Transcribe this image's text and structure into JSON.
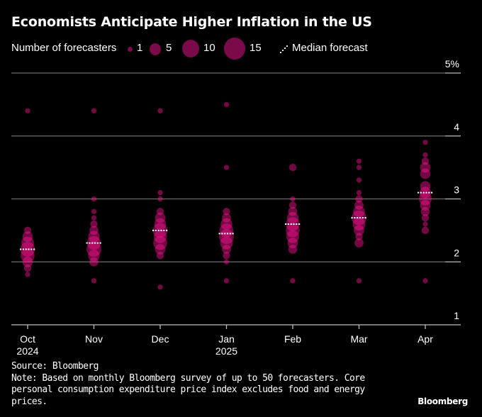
{
  "title": "Economists Anticipate Higher Inflation in the US",
  "legend": {
    "size_label": "Number of forecasters",
    "sizes": [
      {
        "count": 1,
        "label": "1"
      },
      {
        "count": 5,
        "label": "5"
      },
      {
        "count": 10,
        "label": "10"
      },
      {
        "count": 15,
        "label": "15"
      }
    ],
    "median_label": "Median forecast"
  },
  "colors": {
    "legend_circle": "#7a0a4a",
    "dot": "#ff1493",
    "median": "#ffffff",
    "grid": "#6e6e6e",
    "background": "#000000"
  },
  "footer": {
    "source": "Source: Bloomberg",
    "note_lines": [
      "Note: Based on monthly Bloomberg survey of up to 50 forecasters. Core",
      "personal consumption expenditure price index excludes food and energy",
      "prices."
    ],
    "brand": "Bloomberg"
  },
  "chart_data": {
    "type": "scatter",
    "title": "Economists Anticipate Higher Inflation in the US",
    "xlabel": "",
    "ylabel": "",
    "ylim": [
      1,
      5
    ],
    "y_ticks": [
      {
        "value": 5,
        "label": "5%"
      },
      {
        "value": 4,
        "label": "4"
      },
      {
        "value": 3,
        "label": "3"
      },
      {
        "value": 2,
        "label": "2"
      },
      {
        "value": 1,
        "label": "1"
      }
    ],
    "grid": true,
    "legend_position": "top",
    "categories": [
      {
        "label": "Oct",
        "sub": "2024"
      },
      {
        "label": "Nov",
        "sub": ""
      },
      {
        "label": "Dec",
        "sub": ""
      },
      {
        "label": "Jan",
        "sub": "2025"
      },
      {
        "label": "Feb",
        "sub": ""
      },
      {
        "label": "Mar",
        "sub": ""
      },
      {
        "label": "Apr",
        "sub": ""
      }
    ],
    "medians": [
      2.2,
      2.3,
      2.5,
      2.45,
      2.6,
      2.7,
      3.1
    ],
    "series": [
      {
        "name": "Oct",
        "points": [
          {
            "value": 4.4,
            "count": 1
          },
          {
            "value": 2.5,
            "count": 2
          },
          {
            "value": 2.4,
            "count": 4
          },
          {
            "value": 2.3,
            "count": 6
          },
          {
            "value": 2.2,
            "count": 8
          },
          {
            "value": 2.1,
            "count": 7
          },
          {
            "value": 2.0,
            "count": 4
          },
          {
            "value": 1.9,
            "count": 2
          },
          {
            "value": 1.8,
            "count": 1
          }
        ]
      },
      {
        "name": "Nov",
        "points": [
          {
            "value": 4.4,
            "count": 1
          },
          {
            "value": 3.0,
            "count": 1
          },
          {
            "value": 2.8,
            "count": 1
          },
          {
            "value": 2.7,
            "count": 1
          },
          {
            "value": 2.6,
            "count": 2
          },
          {
            "value": 2.5,
            "count": 3
          },
          {
            "value": 2.4,
            "count": 5
          },
          {
            "value": 2.3,
            "count": 7
          },
          {
            "value": 2.2,
            "count": 8
          },
          {
            "value": 2.1,
            "count": 5
          },
          {
            "value": 2.0,
            "count": 3
          },
          {
            "value": 1.7,
            "count": 1
          }
        ]
      },
      {
        "name": "Dec",
        "points": [
          {
            "value": 4.4,
            "count": 1
          },
          {
            "value": 3.1,
            "count": 1
          },
          {
            "value": 3.0,
            "count": 1
          },
          {
            "value": 2.8,
            "count": 2
          },
          {
            "value": 2.7,
            "count": 4
          },
          {
            "value": 2.6,
            "count": 5
          },
          {
            "value": 2.5,
            "count": 8
          },
          {
            "value": 2.4,
            "count": 6
          },
          {
            "value": 2.3,
            "count": 7
          },
          {
            "value": 2.2,
            "count": 4
          },
          {
            "value": 2.1,
            "count": 2
          },
          {
            "value": 1.6,
            "count": 1
          }
        ]
      },
      {
        "name": "Jan",
        "points": [
          {
            "value": 4.5,
            "count": 1
          },
          {
            "value": 3.5,
            "count": 1
          },
          {
            "value": 2.8,
            "count": 2
          },
          {
            "value": 2.7,
            "count": 3
          },
          {
            "value": 2.6,
            "count": 5
          },
          {
            "value": 2.5,
            "count": 7
          },
          {
            "value": 2.4,
            "count": 8
          },
          {
            "value": 2.3,
            "count": 6
          },
          {
            "value": 2.2,
            "count": 3
          },
          {
            "value": 2.1,
            "count": 2
          },
          {
            "value": 2.0,
            "count": 1
          },
          {
            "value": 1.7,
            "count": 1
          }
        ]
      },
      {
        "name": "Feb",
        "points": [
          {
            "value": 3.5,
            "count": 2
          },
          {
            "value": 3.0,
            "count": 1
          },
          {
            "value": 2.9,
            "count": 2
          },
          {
            "value": 2.8,
            "count": 3
          },
          {
            "value": 2.7,
            "count": 5
          },
          {
            "value": 2.6,
            "count": 7
          },
          {
            "value": 2.5,
            "count": 7
          },
          {
            "value": 2.4,
            "count": 6
          },
          {
            "value": 2.3,
            "count": 4
          },
          {
            "value": 2.2,
            "count": 3
          },
          {
            "value": 1.7,
            "count": 1
          }
        ]
      },
      {
        "name": "Mar",
        "points": [
          {
            "value": 3.6,
            "count": 1
          },
          {
            "value": 3.5,
            "count": 1
          },
          {
            "value": 3.3,
            "count": 1
          },
          {
            "value": 3.1,
            "count": 1
          },
          {
            "value": 3.0,
            "count": 2
          },
          {
            "value": 2.9,
            "count": 3
          },
          {
            "value": 2.8,
            "count": 5
          },
          {
            "value": 2.7,
            "count": 8
          },
          {
            "value": 2.6,
            "count": 6
          },
          {
            "value": 2.5,
            "count": 4
          },
          {
            "value": 2.4,
            "count": 2
          },
          {
            "value": 2.3,
            "count": 3
          },
          {
            "value": 1.7,
            "count": 1
          }
        ]
      },
      {
        "name": "Apr",
        "points": [
          {
            "value": 3.9,
            "count": 1
          },
          {
            "value": 3.7,
            "count": 1
          },
          {
            "value": 3.6,
            "count": 2
          },
          {
            "value": 3.5,
            "count": 4
          },
          {
            "value": 3.4,
            "count": 4
          },
          {
            "value": 3.2,
            "count": 4
          },
          {
            "value": 3.1,
            "count": 5
          },
          {
            "value": 3.0,
            "count": 6
          },
          {
            "value": 2.9,
            "count": 4
          },
          {
            "value": 2.8,
            "count": 3
          },
          {
            "value": 2.7,
            "count": 2
          },
          {
            "value": 2.6,
            "count": 1
          },
          {
            "value": 2.5,
            "count": 2
          },
          {
            "value": 1.7,
            "count": 1
          }
        ]
      }
    ]
  }
}
